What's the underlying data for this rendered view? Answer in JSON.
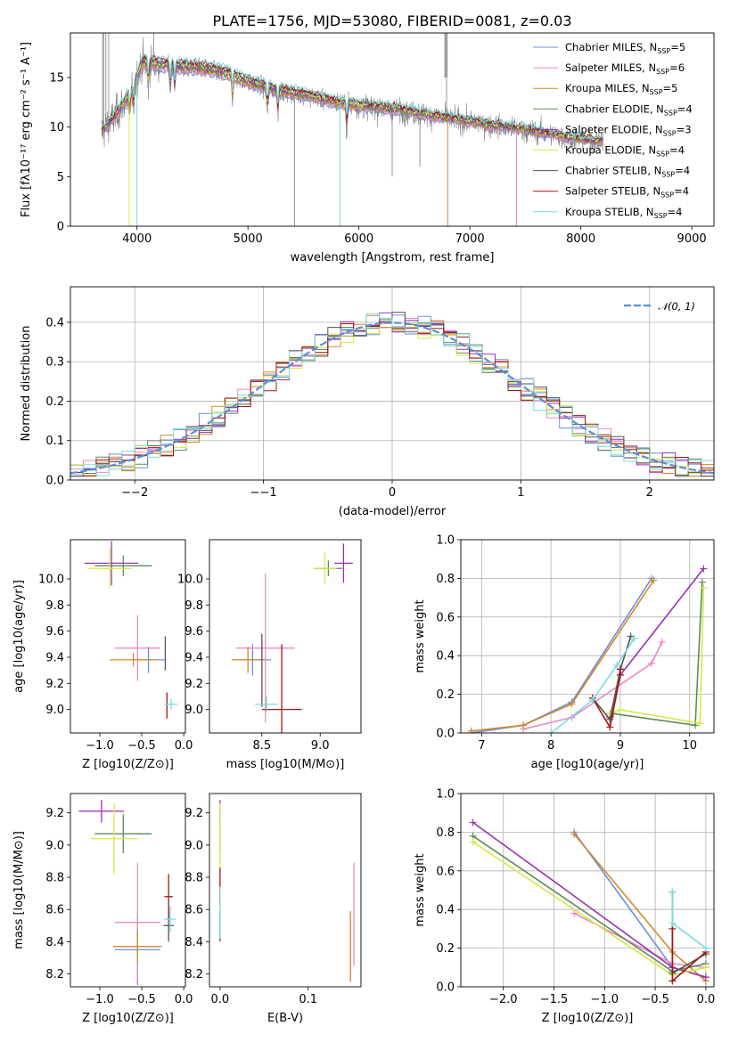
{
  "figure": {
    "title": "PLATE=1756, MJD=53080, FIBERID=0081, z=0.03"
  },
  "colors": {
    "Chabrier MILES": "#6a8fd8",
    "Salpeter MILES": "#e98ac2",
    "Kroupa MILES": "#d08a2a",
    "Chabrier ELODIE": "#5f8a5f",
    "Salpeter ELODIE": "#9a34b0",
    "Kroupa ELODIE": "#d4ea46",
    "Chabrier STELIB": "#555555",
    "Salpeter STELIB": "#a41616",
    "Kroupa STELIB": "#7adcdc",
    "data": "#808080",
    "normal": "#5a8fd6",
    "grid": "#b0b0b0"
  },
  "chart_data": [
    {
      "id": "spectrum",
      "type": "line",
      "xlabel": "wavelength [Angstrom, rest frame]",
      "ylabel": "Flux [fλ10⁻¹⁷ erg cm⁻² s⁻¹ A⁻¹]",
      "xlim": [
        3400,
        9200
      ],
      "ylim": [
        0,
        19.5
      ],
      "xticks": [
        4000,
        5000,
        6000,
        7000,
        8000,
        9000
      ],
      "yticks": [
        0,
        5,
        10,
        15
      ],
      "grid": false,
      "legend_position": "top-right",
      "continuum": {
        "x": [
          3680,
          3800,
          3950,
          4050,
          4200,
          4400,
          4600,
          4800,
          5000,
          5200,
          5500,
          5800,
          6100,
          6400,
          6700,
          7000,
          7300,
          7600,
          7900,
          8200
        ],
        "y": [
          9.5,
          11.0,
          13.5,
          16.5,
          16.2,
          16.0,
          15.8,
          15.4,
          14.5,
          13.8,
          13.2,
          12.4,
          12.0,
          11.6,
          11.0,
          10.5,
          10.0,
          9.5,
          8.9,
          8.5
        ]
      },
      "legend": [
        {
          "name": "Chabrier MILES",
          "nssp": "5"
        },
        {
          "name": "Salpeter MILES",
          "nssp": "6"
        },
        {
          "name": "Kroupa MILES",
          "nssp": "5"
        },
        {
          "name": "Chabrier ELODIE",
          "nssp": "4"
        },
        {
          "name": "Salpeter ELODIE",
          "nssp": "3"
        },
        {
          "name": "Kroupa ELODIE",
          "nssp": "4"
        },
        {
          "name": "Chabrier STELIB",
          "nssp": "4"
        },
        {
          "name": "Salpeter STELIB",
          "nssp": "4"
        },
        {
          "name": "Kroupa STELIB",
          "nssp": "4"
        }
      ]
    },
    {
      "id": "residuals",
      "type": "histogram",
      "xlabel": "(data-model)/error",
      "ylabel": "Normed distribution",
      "xlim": [
        -2.5,
        2.5
      ],
      "ylim": [
        0,
        0.49
      ],
      "xticks": [
        -2,
        -1,
        0,
        1,
        2
      ],
      "yticks": [
        0.0,
        0.1,
        0.2,
        0.3,
        0.4
      ],
      "grid": true,
      "legend_position": "top-right",
      "legend_label": "𝒩(0, 1)"
    },
    {
      "id": "age-vs-Z",
      "type": "errorbar",
      "xlabel": "Z [log10(Z/Z⊙)]",
      "ylabel": "age  [log10(age/yr)]",
      "xlim": [
        -1.35,
        0.02
      ],
      "ylim": [
        8.82,
        10.3
      ],
      "xticks": [
        -1.0,
        -0.5,
        0.0
      ],
      "yticks": [
        9.0,
        9.2,
        9.4,
        9.6,
        9.8,
        10.0
      ],
      "points": [
        {
          "model": "Chabrier MILES",
          "x": -0.42,
          "xerr": 0.2,
          "y": 9.38,
          "yerr": 0.1
        },
        {
          "model": "Salpeter MILES",
          "x": -0.55,
          "xerr": 0.27,
          "y": 9.47,
          "yerr": 0.25
        },
        {
          "model": "Kroupa MILES",
          "x": -0.6,
          "xerr": 0.28,
          "y": 9.38,
          "yerr": 0.05
        },
        {
          "model": "Chabrier ELODIE",
          "x": -0.72,
          "xerr": 0.34,
          "y": 10.1,
          "yerr": 0.08
        },
        {
          "model": "Salpeter ELODIE",
          "x": -0.86,
          "xerr": 0.32,
          "y": 10.12,
          "yerr": 0.17
        },
        {
          "model": "Kroupa ELODIE",
          "x": -0.88,
          "xerr": 0.26,
          "y": 10.08,
          "yerr": 0.15
        },
        {
          "model": "Chabrier STELIB",
          "x": -0.22,
          "xerr": 0.0,
          "y": 9.43,
          "yerr": 0.13
        },
        {
          "model": "Salpeter STELIB",
          "x": -0.2,
          "xerr": 0.0,
          "y": 9.03,
          "yerr": 0.1
        },
        {
          "model": "Kroupa STELIB",
          "x": -0.15,
          "xerr": 0.08,
          "y": 9.04,
          "yerr": 0.04
        }
      ]
    },
    {
      "id": "age-vs-mass",
      "type": "errorbar",
      "xlabel": "mass [log10(M/M⊙)]",
      "ylabel": "",
      "xlim": [
        8.05,
        9.35
      ],
      "ylim": [
        8.82,
        10.3
      ],
      "xticks": [
        8.5,
        9.0
      ],
      "yticks": [
        9.0,
        9.2,
        9.4,
        9.6,
        9.8,
        10.0
      ],
      "points": [
        {
          "model": "Chabrier MILES",
          "x": 8.42,
          "xerr": 0.16,
          "y": 9.38,
          "yerr": 0.12
        },
        {
          "model": "Salpeter MILES",
          "x": 8.53,
          "xerr": 0.25,
          "y": 9.47,
          "yerr": 0.57
        },
        {
          "model": "Kroupa MILES",
          "x": 8.38,
          "xerr": 0.14,
          "y": 9.38,
          "yerr": 0.1
        },
        {
          "model": "Chabrier ELODIE",
          "x": 9.07,
          "xerr": 0.12,
          "y": 10.08,
          "yerr": 0.06
        },
        {
          "model": "Salpeter ELODIE",
          "x": 9.2,
          "xerr": 0.08,
          "y": 10.12,
          "yerr": 0.15
        },
        {
          "model": "Kroupa ELODIE",
          "x": 9.04,
          "xerr": 0.1,
          "y": 10.08,
          "yerr": 0.12
        },
        {
          "model": "Chabrier STELIB",
          "x": 8.5,
          "xerr": 0.0,
          "y": 9.3,
          "yerr": 0.28
        },
        {
          "model": "Salpeter STELIB",
          "x": 8.67,
          "xerr": 0.17,
          "y": 9.0,
          "yerr": 0.5
        },
        {
          "model": "Kroupa STELIB",
          "x": 8.54,
          "xerr": 0.1,
          "y": 9.04,
          "yerr": 0.06
        }
      ]
    },
    {
      "id": "weight-vs-age",
      "type": "line",
      "xlabel": "age  [log10(age/yr)]",
      "ylabel": "mass weight",
      "xlim": [
        6.7,
        10.35
      ],
      "ylim": [
        0.0,
        1.0
      ],
      "xticks": [
        7,
        8,
        9,
        10
      ],
      "yticks": [
        0.0,
        0.2,
        0.4,
        0.6,
        0.8,
        1.0
      ],
      "grid": true,
      "series": [
        {
          "model": "Chabrier MILES",
          "x": [
            6.85,
            7.6,
            8.3,
            9.45
          ],
          "y": [
            0.0,
            0.04,
            0.16,
            0.8
          ]
        },
        {
          "model": "Salpeter MILES",
          "x": [
            7.6,
            8.3,
            9.45,
            9.6
          ],
          "y": [
            0.02,
            0.08,
            0.36,
            0.47
          ]
        },
        {
          "model": "Kroupa MILES",
          "x": [
            6.85,
            7.6,
            8.3,
            9.48
          ],
          "y": [
            0.01,
            0.04,
            0.15,
            0.79
          ]
        },
        {
          "model": "Chabrier ELODIE",
          "x": [
            8.85,
            8.9,
            10.08,
            10.18
          ],
          "y": [
            0.1,
            0.1,
            0.04,
            0.78
          ]
        },
        {
          "model": "Salpeter ELODIE",
          "x": [
            8.85,
            9.0,
            10.2
          ],
          "y": [
            0.08,
            0.3,
            0.85
          ]
        },
        {
          "model": "Kroupa ELODIE",
          "x": [
            8.85,
            9.0,
            10.15,
            10.2
          ],
          "y": [
            0.1,
            0.12,
            0.05,
            0.75
          ]
        },
        {
          "model": "Chabrier STELIB",
          "x": [
            8.6,
            8.85,
            9.0,
            9.15
          ],
          "y": [
            0.18,
            0.07,
            0.33,
            0.5
          ]
        },
        {
          "model": "Salpeter STELIB",
          "x": [
            8.6,
            8.85,
            9.0,
            9.0
          ],
          "y": [
            0.18,
            0.03,
            0.3,
            0.33
          ]
        },
        {
          "model": "Kroupa STELIB",
          "x": [
            8.0,
            8.6,
            8.95,
            9.2
          ],
          "y": [
            0.0,
            0.17,
            0.35,
            0.49
          ]
        }
      ]
    },
    {
      "id": "mass-vs-Z",
      "type": "errorbar",
      "xlabel": "Z [log10(Z/Z⊙)]",
      "ylabel": "mass [log10(M/M⊙)]",
      "xlim": [
        -1.35,
        0.02
      ],
      "ylim": [
        8.12,
        9.32
      ],
      "xticks": [
        -1.0,
        -0.5,
        0.0
      ],
      "yticks": [
        8.2,
        8.4,
        8.6,
        8.8,
        9.0,
        9.2
      ],
      "points": [
        {
          "model": "Chabrier MILES",
          "x": -0.55,
          "xerr": 0.27,
          "y": 8.35,
          "yerr": 0.22
        },
        {
          "model": "Salpeter MILES",
          "x": -0.55,
          "xerr": 0.27,
          "y": 8.52,
          "yerr": 0.37
        },
        {
          "model": "Kroupa MILES",
          "x": -0.55,
          "xerr": 0.29,
          "y": 8.37,
          "yerr": 0.1
        },
        {
          "model": "Chabrier ELODIE",
          "x": -0.72,
          "xerr": 0.34,
          "y": 9.07,
          "yerr": 0.12
        },
        {
          "model": "Salpeter ELODIE",
          "x": -0.98,
          "xerr": 0.27,
          "y": 9.21,
          "yerr": 0.07
        },
        {
          "model": "Kroupa ELODIE",
          "x": -0.83,
          "xerr": 0.28,
          "y": 9.04,
          "yerr": 0.22
        },
        {
          "model": "Chabrier STELIB",
          "x": -0.18,
          "xerr": 0.06,
          "y": 8.5,
          "yerr": 0.1
        },
        {
          "model": "Salpeter STELIB",
          "x": -0.18,
          "xerr": 0.05,
          "y": 8.68,
          "yerr": 0.14
        },
        {
          "model": "Kroupa STELIB",
          "x": -0.16,
          "xerr": 0.07,
          "y": 8.54,
          "yerr": 0.08
        }
      ]
    },
    {
      "id": "mass-vs-EBV",
      "type": "errorbar",
      "xlabel": "E(B-V)",
      "ylabel": "",
      "xlim": [
        -0.012,
        0.16
      ],
      "ylim": [
        8.12,
        9.32
      ],
      "xticks": [
        0.0,
        0.1
      ],
      "yticks": [
        8.2,
        8.4,
        8.6,
        8.8,
        9.0,
        9.2
      ],
      "points": [
        {
          "model": "Chabrier MILES",
          "x": 0.148,
          "xerr": 0.0,
          "y": 8.35,
          "yerr": 0.19
        },
        {
          "model": "Salpeter MILES",
          "x": 0.152,
          "xerr": 0.0,
          "y": 8.57,
          "yerr": 0.32
        },
        {
          "model": "Kroupa MILES",
          "x": 0.148,
          "xerr": 0.0,
          "y": 8.37,
          "yerr": 0.22
        },
        {
          "model": "Chabrier ELODIE",
          "x": 0.0,
          "xerr": 0.0,
          "y": 9.07,
          "yerr": 0.12
        },
        {
          "model": "Salpeter ELODIE",
          "x": 0.0,
          "xerr": 0.0,
          "y": 9.21,
          "yerr": 0.07
        },
        {
          "model": "Kroupa ELODIE",
          "x": 0.0,
          "xerr": 0.0,
          "y": 9.04,
          "yerr": 0.22
        },
        {
          "model": "Chabrier STELIB",
          "x": 0.0,
          "xerr": 0.0,
          "y": 8.5,
          "yerr": 0.1
        },
        {
          "model": "Salpeter STELIB",
          "x": 0.0,
          "xerr": 0.0,
          "y": 8.74,
          "yerr": 0.12
        },
        {
          "model": "Kroupa STELIB",
          "x": 0.0,
          "xerr": 0.0,
          "y": 8.58,
          "yerr": 0.16
        }
      ]
    },
    {
      "id": "weight-vs-Z",
      "type": "line",
      "xlabel": "Z [log10(Z/Z⊙)]",
      "ylabel": "mass weight",
      "xlim": [
        -2.42,
        0.08
      ],
      "ylim": [
        0.0,
        1.0
      ],
      "xticks": [
        -2.0,
        -1.5,
        -1.0,
        -0.5,
        0.0
      ],
      "yticks": [
        0.0,
        0.2,
        0.4,
        0.6,
        0.8,
        1.0
      ],
      "grid": true,
      "series": [
        {
          "model": "Chabrier MILES",
          "x": [
            -1.3,
            -0.33,
            0.0
          ],
          "y": [
            0.8,
            0.1,
            0.05
          ]
        },
        {
          "model": "Salpeter MILES",
          "x": [
            -1.3,
            -0.33,
            0.0
          ],
          "y": [
            0.38,
            0.12,
            0.1
          ]
        },
        {
          "model": "Kroupa MILES",
          "x": [
            -1.3,
            -0.33,
            0.0
          ],
          "y": [
            0.79,
            0.18,
            0.03
          ]
        },
        {
          "model": "Chabrier ELODIE",
          "x": [
            -2.3,
            -0.33,
            0.0
          ],
          "y": [
            0.78,
            0.08,
            0.12
          ]
        },
        {
          "model": "Salpeter ELODIE",
          "x": [
            -2.3,
            -0.33,
            0.0
          ],
          "y": [
            0.85,
            0.1,
            0.05
          ]
        },
        {
          "model": "Kroupa ELODIE",
          "x": [
            -2.3,
            -0.33,
            0.0
          ],
          "y": [
            0.75,
            0.06,
            0.1
          ]
        },
        {
          "model": "Chabrier STELIB",
          "x": [
            -0.33,
            -0.33,
            0.0
          ],
          "y": [
            0.49,
            0.07,
            0.17
          ]
        },
        {
          "model": "Salpeter STELIB",
          "x": [
            -0.33,
            -0.33,
            -0.33,
            0.0
          ],
          "y": [
            0.3,
            0.03,
            0.03,
            0.18
          ]
        },
        {
          "model": "Kroupa STELIB",
          "x": [
            -0.33,
            -0.33,
            0.0
          ],
          "y": [
            0.49,
            0.33,
            0.2
          ]
        }
      ]
    }
  ]
}
